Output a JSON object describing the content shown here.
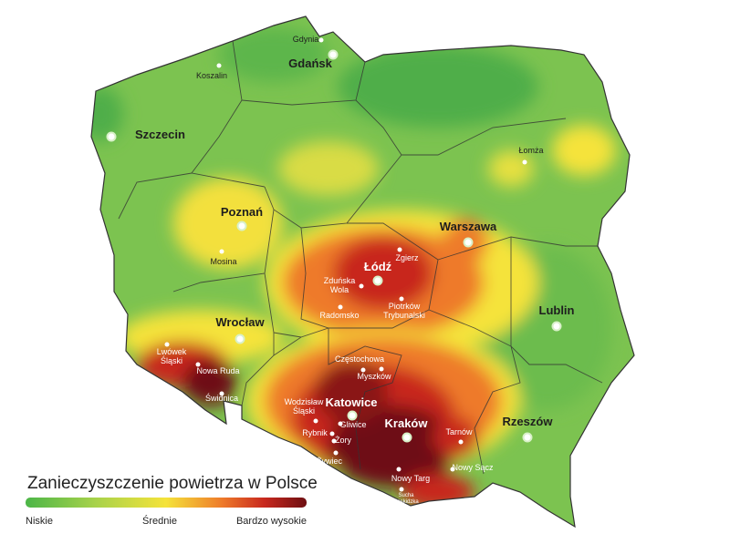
{
  "title": "Zanieczyszczenie powietrza w Polsce",
  "legend": {
    "low": "Niskie",
    "mid": "Średnie",
    "high": "Bardzo wysokie"
  },
  "cities": [
    {
      "lines": [
        "Gdynia"
      ]
    },
    {
      "lines": [
        "Gdańsk"
      ]
    },
    {
      "lines": [
        "Koszalin"
      ]
    },
    {
      "lines": [
        "Szczecin"
      ]
    },
    {
      "lines": [
        "Łomża"
      ]
    },
    {
      "lines": [
        "Poznań"
      ]
    },
    {
      "lines": [
        "Mosina"
      ]
    },
    {
      "lines": [
        "Warszawa"
      ]
    },
    {
      "lines": [
        "Zgierz"
      ]
    },
    {
      "lines": [
        "Łódź"
      ]
    },
    {
      "lines": [
        "Zduńska",
        "Wola"
      ]
    },
    {
      "lines": [
        "Radomsko"
      ]
    },
    {
      "lines": [
        "Piotrków",
        "Trybunalski"
      ]
    },
    {
      "lines": [
        "Lublin"
      ]
    },
    {
      "lines": [
        "Wrocław"
      ]
    },
    {
      "lines": [
        "Lwówek",
        "Śląski"
      ]
    },
    {
      "lines": [
        "Nowa Ruda"
      ]
    },
    {
      "lines": [
        "Świdnica"
      ]
    },
    {
      "lines": [
        "Częstochowa"
      ]
    },
    {
      "lines": [
        "Myszków"
      ]
    },
    {
      "lines": [
        "Wodzisław",
        "Śląski"
      ]
    },
    {
      "lines": [
        "Katowice"
      ]
    },
    {
      "lines": [
        "Gliwice"
      ]
    },
    {
      "lines": [
        "Rybnik"
      ]
    },
    {
      "lines": [
        "Żory"
      ]
    },
    {
      "lines": [
        "Kraków"
      ]
    },
    {
      "lines": [
        "Tarnów"
      ]
    },
    {
      "lines": [
        "Rzeszów"
      ]
    },
    {
      "lines": [
        "Żywiec"
      ]
    },
    {
      "lines": [
        "Nowy Sącz"
      ]
    },
    {
      "lines": [
        "Nowy Targ"
      ]
    },
    {
      "lines": [
        "Sucha",
        "Beskidzka"
      ]
    }
  ]
}
